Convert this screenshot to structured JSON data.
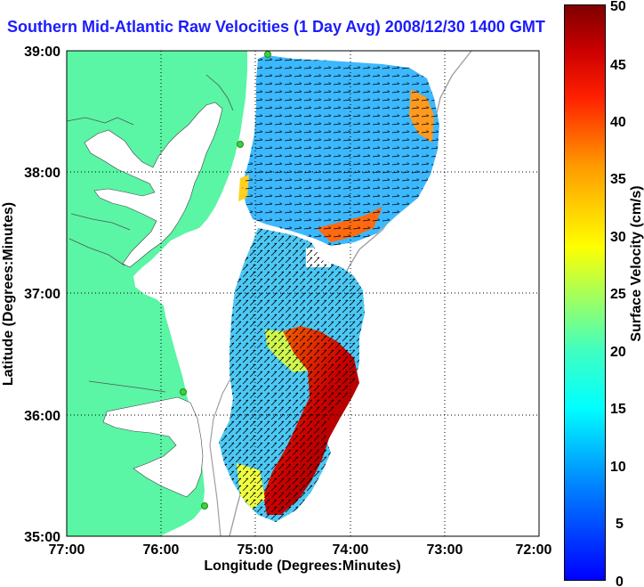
{
  "title": "Southern Mid-Atlantic Raw Velocities (1 Day Avg) 2008/12/30 1400 GMT",
  "x_axis": {
    "label": "Longitude (Degrees:Minutes)",
    "ticks": [
      "77:00",
      "76:00",
      "75:00",
      "74:00",
      "73:00",
      "72:00"
    ],
    "range": [
      -77,
      -72
    ]
  },
  "y_axis": {
    "label": "Latitude (Degrees:Minutes)",
    "ticks": [
      "39:00",
      "38:00",
      "37:00",
      "36:00",
      "35:00"
    ],
    "range": [
      35,
      39
    ]
  },
  "colorbar": {
    "label": "Surface Velocity (cm/s)",
    "ticks": [
      "50",
      "45",
      "40",
      "35",
      "30",
      "25",
      "20",
      "15",
      "10",
      "5",
      "0"
    ],
    "range": [
      0,
      50
    ]
  },
  "colors": {
    "land": "#5af5a5",
    "title": "#1c1cff",
    "station": "#3cd23c",
    "grid": "#000000",
    "bathymetry": "#a0a0a0"
  },
  "grid": "dotted"
}
